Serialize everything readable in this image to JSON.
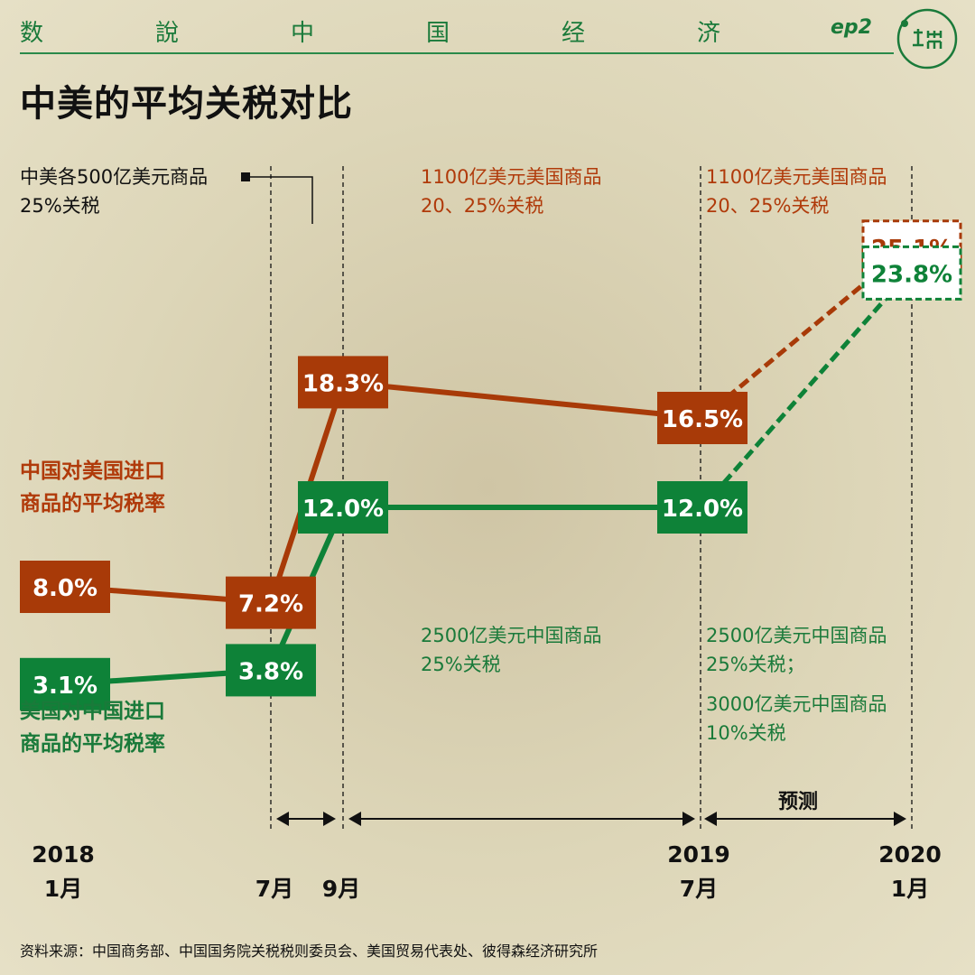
{
  "header": {
    "series_chars": [
      "数",
      "說",
      "中",
      "国",
      "经",
      "济"
    ],
    "episode": "ep2",
    "logo_text": "端"
  },
  "title": "中美的平均关税对比",
  "legend": {
    "china": [
      "中国对美国进口",
      "商品的平均税率"
    ],
    "us": [
      "美国对中国进口",
      "商品的平均税率"
    ]
  },
  "annotations": {
    "initial": [
      "中美各500亿美元商品",
      "25%关税"
    ],
    "china_mid": [
      "1100亿美元美国商品",
      "20、25%关税"
    ],
    "china_right": [
      "1100亿美元美国商品",
      "20、25%关税"
    ],
    "us_mid": [
      "2500亿美元中国商品",
      "25%关税"
    ],
    "us_right_1": [
      "2500亿美元中国商品",
      "25%关税；"
    ],
    "us_right_2": [
      "3000亿美元中国商品",
      "10%关税"
    ]
  },
  "forecast_label": "预测",
  "x_labels": [
    {
      "year": "2018",
      "month": "1月"
    },
    {
      "year": "",
      "month": "7月"
    },
    {
      "year": "",
      "month": "9月"
    },
    {
      "year": "2019",
      "month": "7月"
    },
    {
      "year": "2020",
      "month": "1月"
    }
  ],
  "source": "资料来源：中国商务部、中国国务院关税税则委员会、美国贸易代表处、彼得森经济研究所",
  "colors": {
    "china": "#a83a08",
    "us": "#0e8238",
    "header_green": "#1a7a3a",
    "background": "#ddd6b8"
  },
  "chart_data": {
    "type": "line",
    "categories": [
      "2018 1月",
      "7月",
      "9月",
      "2019 7月",
      "2020 1月"
    ],
    "series": [
      {
        "name": "中国对美国进口商品的平均税率",
        "values": [
          8.0,
          7.2,
          18.3,
          16.5,
          25.1
        ],
        "labels": [
          "8.0%",
          "7.2%",
          "18.3%",
          "16.5%",
          "25.1%"
        ],
        "forecast_from_index": 3
      },
      {
        "name": "美国对中国进口商品的平均税率",
        "values": [
          3.1,
          3.8,
          12.0,
          12.0,
          23.8
        ],
        "labels": [
          "3.1%",
          "3.8%",
          "12.0%",
          "12.0%",
          "23.8%"
        ],
        "forecast_from_index": 3
      }
    ],
    "forecast_range": [
      "2019 7月",
      "2020 1月"
    ],
    "unit": "%"
  }
}
